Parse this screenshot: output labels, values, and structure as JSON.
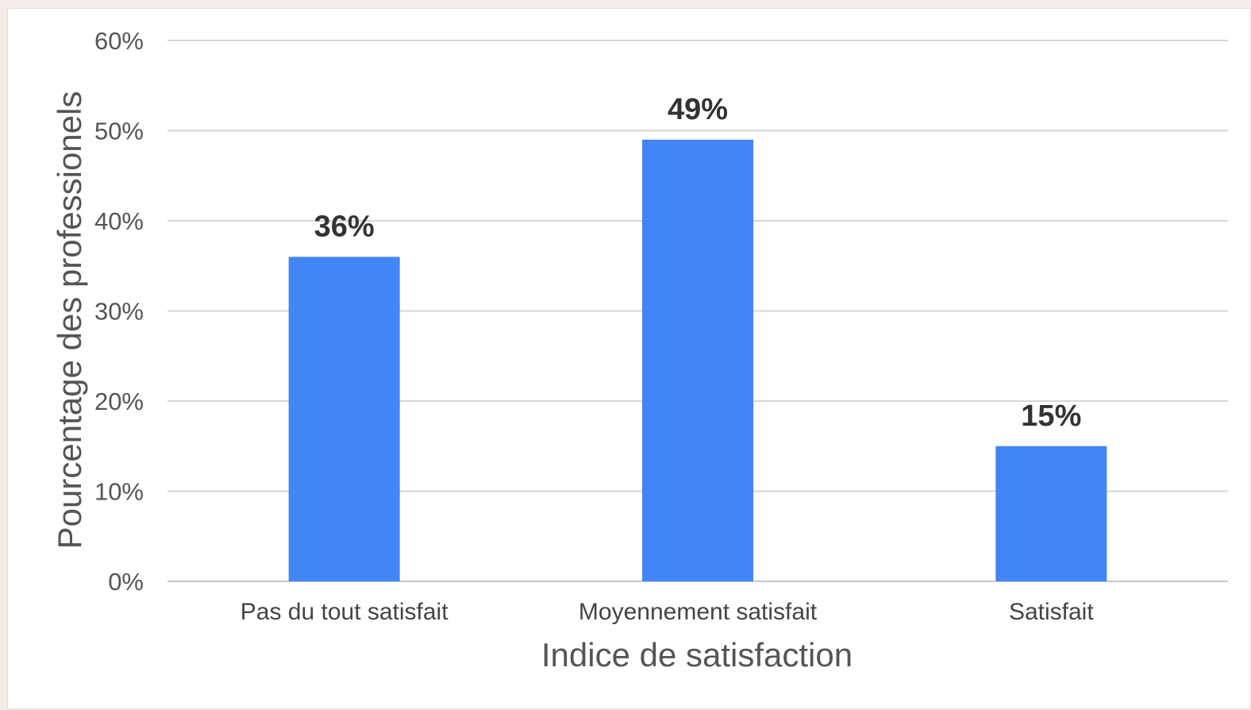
{
  "chart_data": {
    "type": "bar",
    "title": "",
    "xlabel": "Indice de satisfaction",
    "ylabel": "Pourcentage des professionels",
    "categories": [
      "Pas du tout satisfait",
      "Moyennement satisfait",
      "Satisfait"
    ],
    "values": [
      36,
      49,
      15
    ],
    "value_labels": [
      "36%",
      "49%",
      "15%"
    ],
    "ylim": [
      0,
      60
    ],
    "yticks": [
      0,
      10,
      20,
      30,
      40,
      50,
      60
    ],
    "ytick_labels": [
      "0%",
      "10%",
      "20%",
      "30%",
      "40%",
      "50%",
      "60%"
    ],
    "grid": true,
    "legend": "none",
    "bar_color": "#4285f4"
  }
}
